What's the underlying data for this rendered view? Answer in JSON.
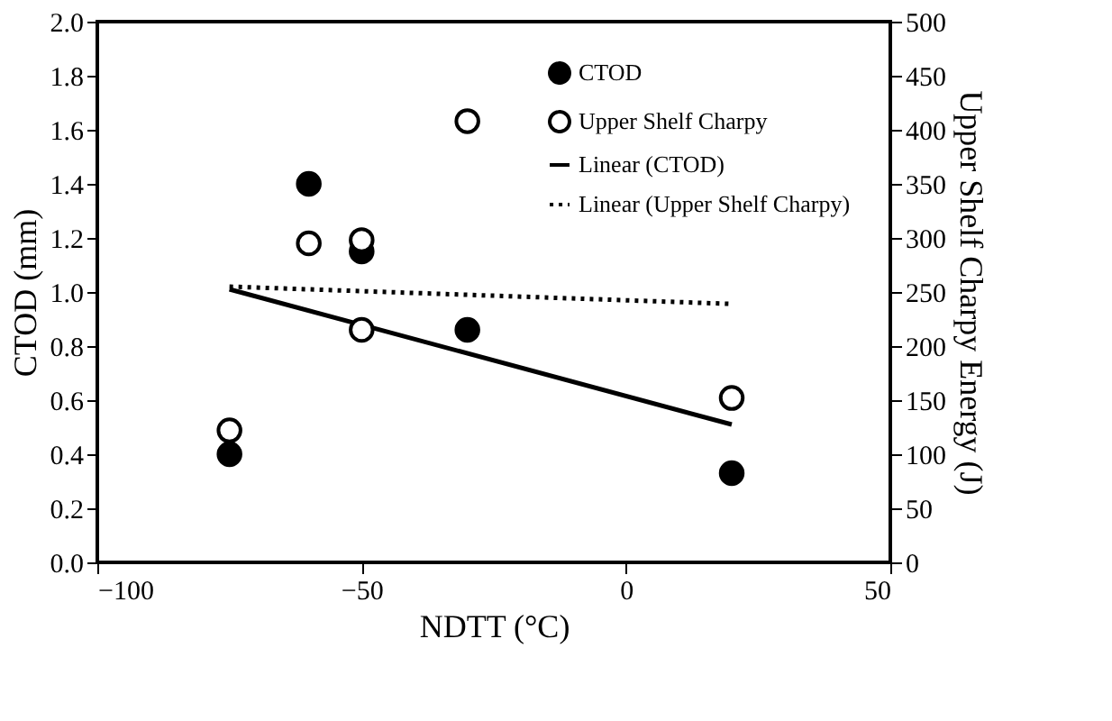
{
  "chart_data": {
    "type": "scatter",
    "xlabel": "NDTT (°C)",
    "ylabel": "CTOD (mm)",
    "y2label": "Upper Shelf Charpy Energy (J)",
    "xlim": [
      -100,
      50
    ],
    "xticks": [
      -100,
      -50,
      0,
      50
    ],
    "ylim": [
      0,
      2
    ],
    "yticks": [
      {
        "value": 0,
        "label": "0.0"
      },
      0.2,
      0.4,
      0.6,
      0.8,
      {
        "value": 1,
        "label": "1.0"
      },
      1.2,
      1.4,
      1.6,
      1.8,
      {
        "value": 2,
        "label": "2.0"
      }
    ],
    "y2lim": [
      0,
      500
    ],
    "y2ticks": [
      0,
      50,
      100,
      150,
      200,
      250,
      300,
      350,
      400,
      450,
      500
    ],
    "grid": false,
    "legend": "top right",
    "series": [
      {
        "name": "CTOD",
        "marker": "circle",
        "color": "#000000",
        "x": [
          -75,
          -60,
          -50,
          -30,
          20
        ],
        "values": [
          0.4,
          1.4,
          1.15,
          0.86,
          0.33
        ]
      },
      {
        "name": "Upper Shelf Charpy",
        "marker": "circle",
        "axis": "y2",
        "color": "#000000",
        "x": [
          -75,
          -60,
          -50,
          -50,
          -30,
          20
        ],
        "values": [
          122,
          295,
          298,
          215,
          408,
          152
        ]
      },
      {
        "name": "Linear (CTOD)",
        "type": "line",
        "line_style": "solid",
        "color": "#000000",
        "x": [
          -75,
          20
        ],
        "values": [
          1.01,
          0.51
        ]
      },
      {
        "name": "Linear (Upper Shelf Charpy)",
        "type": "line",
        "line_style": "dotted",
        "axis": "y2",
        "color": "#000000",
        "x": [
          -75,
          20
        ],
        "values": [
          255,
          239
        ]
      }
    ]
  }
}
